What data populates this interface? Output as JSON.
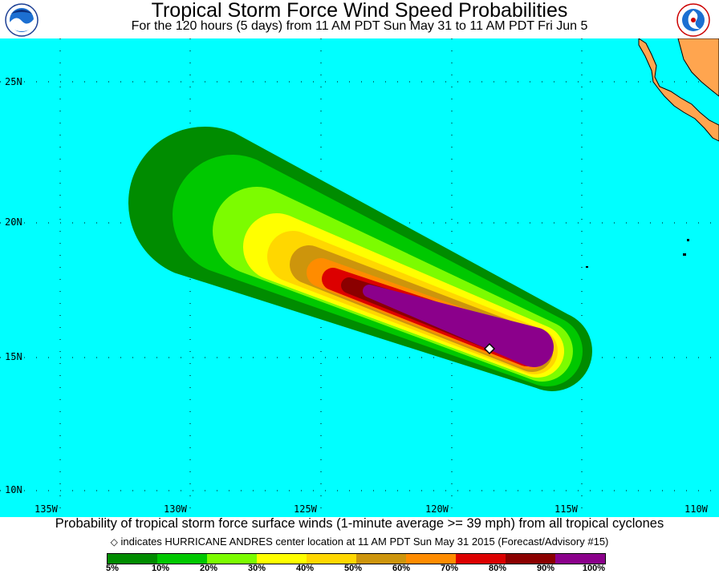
{
  "header": {
    "title": "Tropical Storm Force Wind Speed Probabilities",
    "subtitle": "For the 120 hours (5 days) from 11 AM PDT Sun May 31 to 11 AM PDT Fri Jun 5"
  },
  "logos": {
    "left": "NOAA",
    "right": "NATIONAL WEATHER SERVICE"
  },
  "map": {
    "ocean_color": "#00ffff",
    "land_color": "#ffa54f",
    "lat_labels": [
      "25N",
      "20N",
      "15N",
      "10N"
    ],
    "lon_labels": [
      "135W",
      "130W",
      "125W",
      "120W",
      "115W",
      "110W"
    ]
  },
  "caption": {
    "line1": "Probability of tropical storm force surface winds (1-minute average >= 39 mph) from all tropical cyclones",
    "line2": "indicates HURRICANE ANDRES center location at 11 AM PDT Sun May 31 2015 (Forecast/Advisory #15)"
  },
  "legend": {
    "colors": [
      "#008c00",
      "#00c800",
      "#7cfc00",
      "#ffff00",
      "#ffd700",
      "#cd950c",
      "#ff8c00",
      "#dc0000",
      "#8b0000",
      "#8b008b"
    ],
    "labels": [
      "5%",
      "10%",
      "20%",
      "30%",
      "40%",
      "50%",
      "60%",
      "70%",
      "80%",
      "90%",
      "100%"
    ]
  }
}
